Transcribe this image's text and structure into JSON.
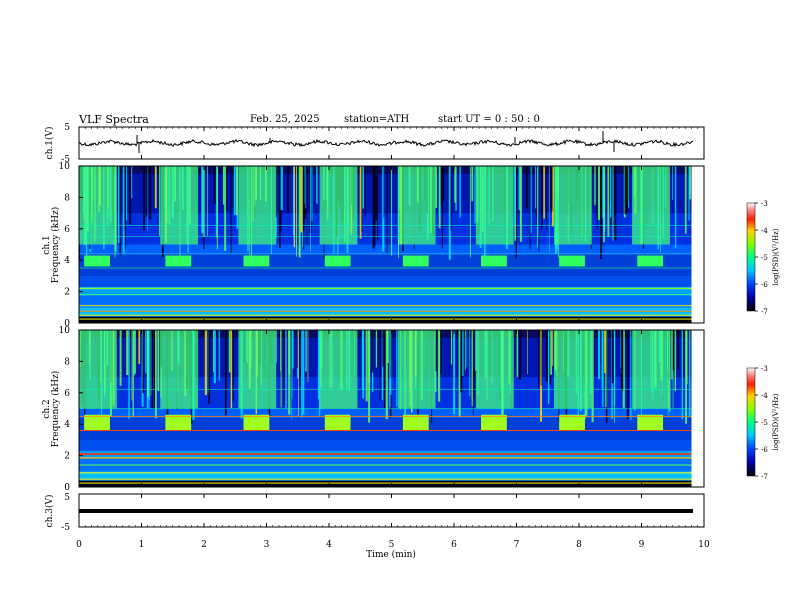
{
  "header": {
    "title": "VLF Spectra",
    "date": "Feb. 25, 2025",
    "station": "station=ATH",
    "start": "start UT =  0 : 50 : 0"
  },
  "chart_data": [
    {
      "type": "line",
      "ylabel": "ch.1(V)",
      "ylim": [
        -5,
        5
      ],
      "yticks": [
        "5",
        "-5"
      ],
      "xlim": [
        0,
        10
      ],
      "series": [
        {
          "values_mean": 0
        }
      ]
    },
    {
      "type": "heatmap",
      "ylabel_top": "ch.1",
      "ylabel": "Frequency (kHz)",
      "ylim": [
        0,
        10
      ],
      "yticks": [
        "0",
        "2",
        "4",
        "6",
        "8",
        "10"
      ],
      "xlim": [
        0,
        9.8
      ],
      "bursts_min": [
        0.0,
        1.3,
        2.55,
        3.85,
        5.1,
        6.35,
        7.6,
        8.85
      ],
      "burst_band_khz": [
        3.6,
        4.3
      ],
      "colorbar": {
        "label": "log(PSD)(V²/Hz)",
        "ticks": [
          "-3",
          "-4",
          "-5",
          "-6",
          "-7"
        ],
        "range": [
          -7,
          -3
        ]
      }
    },
    {
      "type": "heatmap",
      "ylabel_top": "ch.2",
      "ylabel": "Frequency (kHz)",
      "ylim": [
        0,
        10
      ],
      "yticks": [
        "0",
        "2",
        "4",
        "6",
        "8",
        "10"
      ],
      "xlim": [
        0,
        9.8
      ],
      "bursts_min": [
        0.0,
        1.3,
        2.55,
        3.85,
        5.1,
        6.35,
        7.6,
        8.85
      ],
      "burst_band_khz": [
        3.6,
        4.6
      ],
      "colorbar": {
        "label": "log(PSD)(V²/Hz)",
        "ticks": [
          "-3",
          "-4",
          "-5",
          "-6",
          "-7"
        ],
        "range": [
          -7,
          -3
        ]
      }
    },
    {
      "type": "line",
      "ylabel": "ch.3(V)",
      "ylim": [
        -5,
        5
      ],
      "yticks": [
        "5",
        "-5"
      ],
      "xlim": [
        0,
        10
      ],
      "series": [
        {
          "values_mean": -2
        }
      ]
    }
  ],
  "xaxis": {
    "label": "Time (min)",
    "ticks": [
      "0",
      "1",
      "2",
      "3",
      "4",
      "5",
      "6",
      "7",
      "8",
      "9",
      "10"
    ],
    "range": [
      0,
      10
    ]
  }
}
